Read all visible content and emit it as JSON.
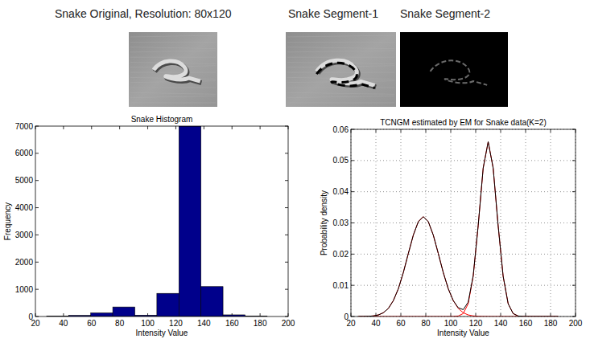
{
  "images": [
    {
      "title": "Snake Original, Resolution: 80x120"
    },
    {
      "title": "Snake Segment-1"
    },
    {
      "title": "Snake Segment-2"
    }
  ],
  "chart_data": [
    {
      "type": "histogram",
      "title": "Snake Histogram",
      "x_label": "Intensity Value",
      "y_label": "Frequency",
      "bins": [
        28,
        43.7,
        59.4,
        75.1,
        90.8,
        106.5,
        122.2,
        137.9,
        153.6,
        169.3,
        185
      ],
      "values": [
        10,
        40,
        130,
        350,
        50,
        850,
        7000,
        1100,
        60,
        10
      ],
      "color": "#00008b",
      "xlim": [
        20,
        200
      ],
      "xticks": [
        20,
        40,
        60,
        80,
        100,
        120,
        140,
        160,
        180,
        200
      ],
      "ylim": [
        0,
        7000
      ],
      "yticks": [
        0,
        1000,
        2000,
        3000,
        4000,
        5000,
        6000,
        7000
      ],
      "grid": false
    },
    {
      "type": "line",
      "title": "TCNGM estimated by EM for Snake data(K=2)",
      "x_label": "Intensity Value",
      "y_label": "Probability density",
      "x": [
        26,
        30,
        34,
        38,
        42,
        46,
        50,
        54,
        58,
        62,
        66,
        70,
        74,
        78,
        82,
        86,
        90,
        94,
        98,
        102,
        106,
        110,
        114,
        118,
        122,
        126,
        130,
        134,
        138,
        142,
        146,
        150,
        154,
        158,
        162,
        166,
        170,
        174,
        178,
        182,
        186
      ],
      "series": [
        {
          "color": "#ff0000",
          "values": [
            1e-05,
            2e-05,
            7e-05,
            0.00019,
            0.0005,
            0.0012,
            0.0026,
            0.0051,
            0.0089,
            0.0141,
            0.0202,
            0.0261,
            0.0304,
            0.032,
            0.0304,
            0.0261,
            0.0202,
            0.0141,
            0.0089,
            0.0051,
            0.0026,
            0.0012,
            0.0005,
            0.00019,
            7e-05,
            2e-05,
            1e-05,
            0,
            0,
            0,
            0,
            0,
            0,
            0,
            0,
            0,
            0,
            0,
            0,
            0,
            0
          ]
        },
        {
          "color": "#ff0000",
          "values": [
            0,
            0,
            0,
            0,
            0,
            0,
            0,
            0,
            0,
            0,
            0,
            0,
            0,
            0,
            0,
            0,
            0,
            0,
            0,
            2e-05,
            0.00016,
            0.00095,
            0.0041,
            0.0129,
            0.0291,
            0.0476,
            0.056,
            0.0476,
            0.0291,
            0.0129,
            0.0041,
            0.00095,
            0.00016,
            2e-05,
            0,
            0,
            0,
            0,
            0,
            0,
            0
          ]
        },
        {
          "color": "#000000",
          "values": [
            1e-05,
            2e-05,
            7e-05,
            0.00019,
            0.0005,
            0.0012,
            0.0026,
            0.0051,
            0.0089,
            0.0141,
            0.0202,
            0.0261,
            0.0304,
            0.032,
            0.0304,
            0.0261,
            0.0202,
            0.0141,
            0.0089,
            0.0051,
            0.0028,
            0.0022,
            0.0046,
            0.0131,
            0.0292,
            0.0476,
            0.056,
            0.0476,
            0.0291,
            0.0129,
            0.0041,
            0.00095,
            0.00016,
            2e-05,
            0,
            0,
            0,
            0,
            0,
            0,
            0
          ]
        }
      ],
      "xlim": [
        20,
        200
      ],
      "xticks": [
        20,
        40,
        60,
        80,
        100,
        120,
        140,
        160,
        180,
        200
      ],
      "ylim": [
        0,
        0.06
      ],
      "yticks": [
        0,
        0.01,
        0.02,
        0.03,
        0.04,
        0.05,
        0.06
      ],
      "grid": true
    }
  ]
}
